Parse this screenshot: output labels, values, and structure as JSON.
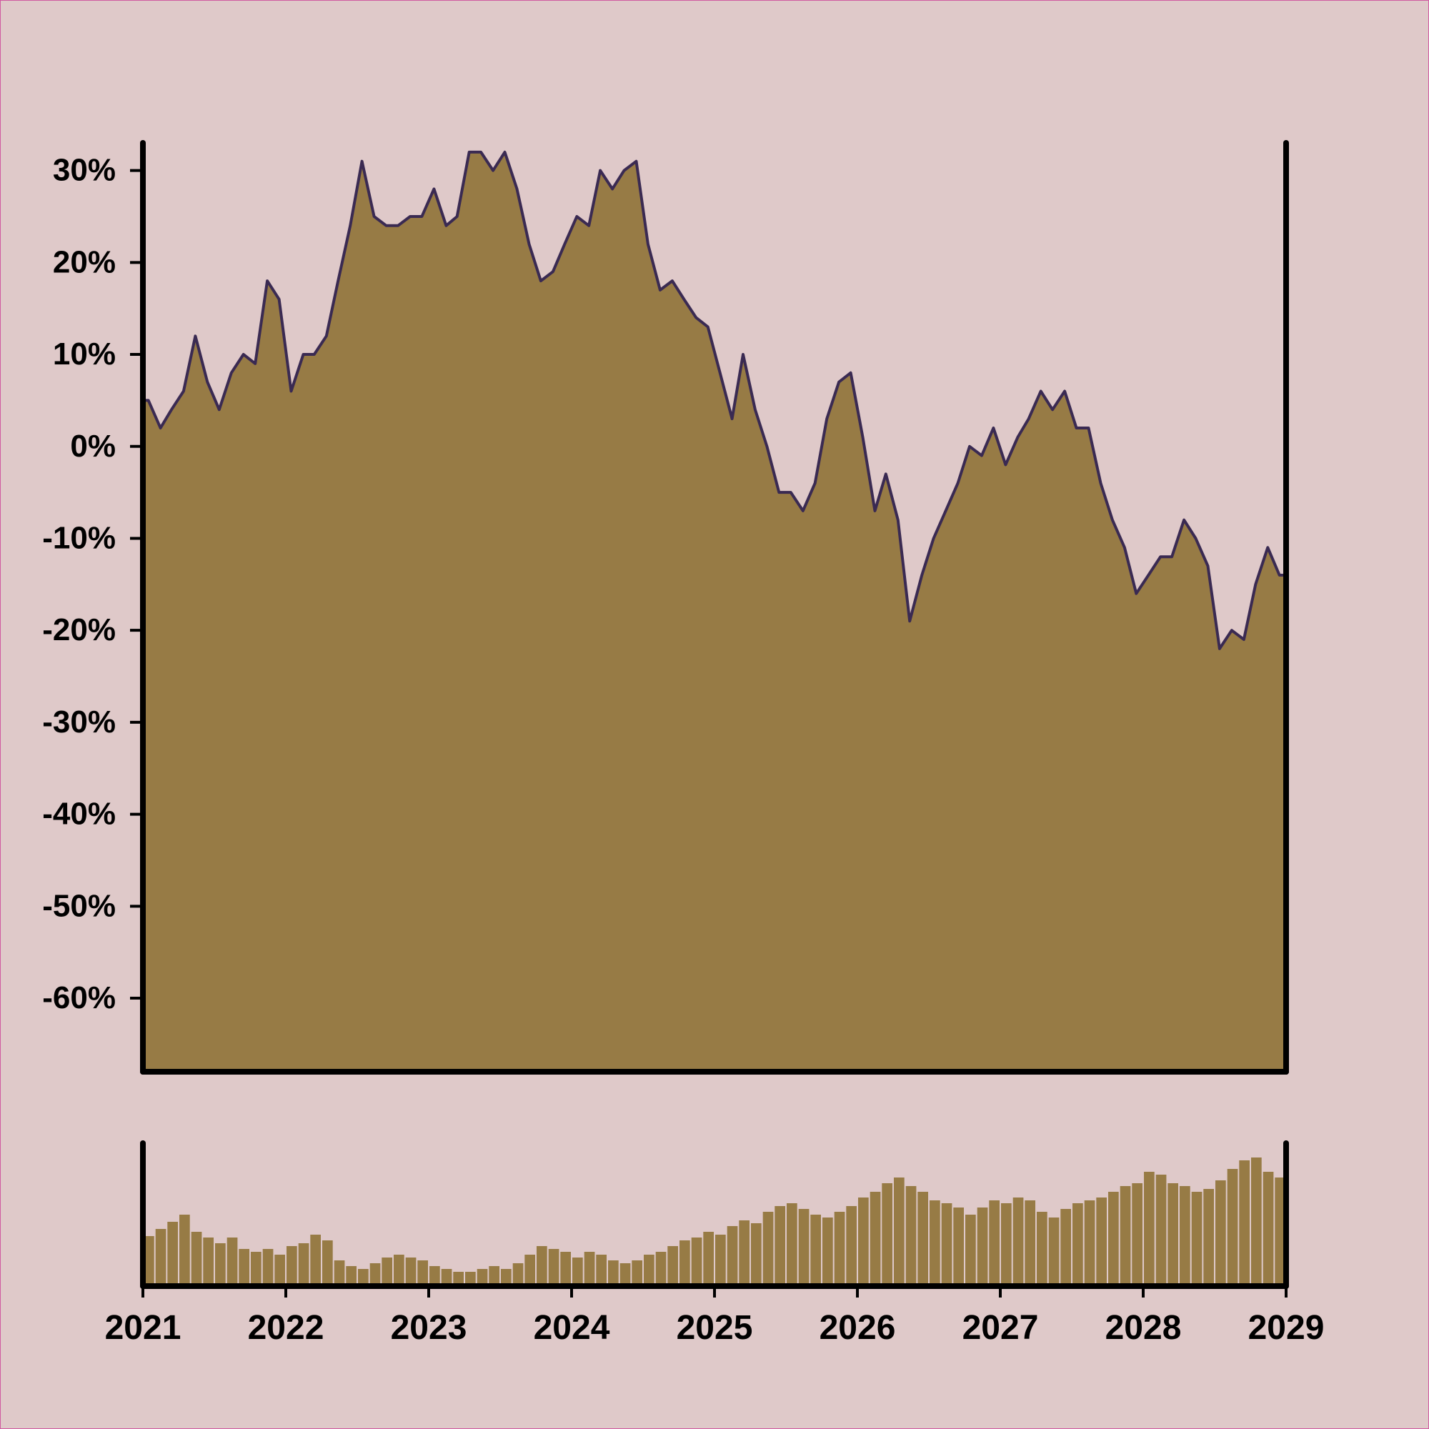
{
  "chart_data": [
    {
      "type": "area",
      "title": "",
      "xlabel": "",
      "ylabel": "",
      "y_unit": "%",
      "ylim": [
        -68,
        33
      ],
      "y_ticks": [
        30,
        20,
        10,
        0,
        -10,
        -20,
        -30,
        -40,
        -50,
        -60
      ],
      "y_tick_labels": [
        "30%",
        "20%",
        "10%",
        "0%",
        "-10%",
        "-20%",
        "-30%",
        "-40%",
        "-50%",
        "-60%"
      ],
      "x_range": [
        "2021-01-01",
        "2029-01-01"
      ],
      "grid": false,
      "legend": "none",
      "series": [
        {
          "x": [
            "2021-01",
            "2021-02",
            "2021-03",
            "2021-04",
            "2021-05",
            "2021-06",
            "2021-07",
            "2021-08",
            "2021-09",
            "2021-10",
            "2021-11",
            "2021-12",
            "2022-01",
            "2022-02",
            "2022-03",
            "2022-04",
            "2022-05",
            "2022-06",
            "2022-07",
            "2022-08",
            "2022-09",
            "2022-10",
            "2022-11",
            "2022-12",
            "2023-01",
            "2023-02",
            "2023-03",
            "2023-04",
            "2023-05",
            "2023-06",
            "2023-07",
            "2023-08",
            "2023-09",
            "2023-10",
            "2023-11",
            "2023-12",
            "2024-01",
            "2024-02",
            "2024-03",
            "2024-04",
            "2024-05",
            "2024-06",
            "2024-07",
            "2024-08",
            "2024-09",
            "2024-10",
            "2024-11",
            "2024-12",
            "2025-01",
            "2025-02",
            "2025-03",
            "2025-04",
            "2025-05",
            "2025-06",
            "2025-07",
            "2025-08",
            "2025-09",
            "2025-10",
            "2025-11",
            "2025-12",
            "2026-01",
            "2026-02",
            "2026-03",
            "2026-04",
            "2026-05",
            "2026-06",
            "2026-07",
            "2026-08",
            "2026-09",
            "2026-10",
            "2026-11",
            "2026-12",
            "2027-01",
            "2027-02",
            "2027-03",
            "2027-04",
            "2027-05",
            "2027-06",
            "2027-07",
            "2027-08",
            "2027-09",
            "2027-10",
            "2027-11",
            "2027-12",
            "2028-01",
            "2028-02",
            "2028-03",
            "2028-04",
            "2028-05",
            "2028-06",
            "2028-07",
            "2028-08",
            "2028-09",
            "2028-10",
            "2028-11",
            "2028-12"
          ],
          "values": [
            5,
            2,
            4,
            6,
            12,
            7,
            4,
            8,
            10,
            9,
            18,
            16,
            6,
            10,
            10,
            12,
            18,
            24,
            31,
            25,
            24,
            24,
            25,
            25,
            28,
            24,
            25,
            32,
            32,
            30,
            32,
            28,
            22,
            18,
            19,
            22,
            25,
            24,
            30,
            28,
            30,
            31,
            22,
            17,
            18,
            16,
            14,
            13,
            8,
            3,
            10,
            4,
            0,
            -5,
            -5,
            -7,
            -4,
            3,
            7,
            8,
            1,
            -7,
            -3,
            -8,
            -19,
            -14,
            -10,
            -7,
            -4,
            0,
            -1,
            2,
            -2,
            1,
            3,
            6,
            4,
            6,
            2,
            2,
            -4,
            -8,
            -11,
            -16,
            -14,
            -12,
            -12,
            -8,
            -10,
            -13,
            -22,
            -20,
            -21,
            -15,
            -11,
            -14
          ],
          "color": "#977b45",
          "line_color": "#3a2a52"
        }
      ]
    },
    {
      "type": "bar",
      "title": "",
      "x_tick_labels": [
        "2021",
        "2022",
        "2023",
        "2024",
        "2025",
        "2026",
        "2027",
        "2028",
        "2029"
      ],
      "x_ticks": [
        2021,
        2022,
        2023,
        2024,
        2025,
        2026,
        2027,
        2028,
        2029
      ],
      "y_ticks": [],
      "ylim": [
        0,
        1
      ],
      "values": [
        0.35,
        0.4,
        0.45,
        0.5,
        0.38,
        0.34,
        0.3,
        0.34,
        0.26,
        0.24,
        0.26,
        0.22,
        0.28,
        0.3,
        0.36,
        0.32,
        0.18,
        0.14,
        0.12,
        0.16,
        0.2,
        0.22,
        0.2,
        0.18,
        0.14,
        0.12,
        0.1,
        0.1,
        0.12,
        0.14,
        0.12,
        0.16,
        0.22,
        0.28,
        0.26,
        0.24,
        0.2,
        0.24,
        0.22,
        0.18,
        0.16,
        0.18,
        0.22,
        0.24,
        0.28,
        0.32,
        0.34,
        0.38,
        0.36,
        0.42,
        0.46,
        0.44,
        0.52,
        0.56,
        0.58,
        0.54,
        0.5,
        0.48,
        0.52,
        0.56,
        0.62,
        0.66,
        0.72,
        0.76,
        0.7,
        0.66,
        0.6,
        0.58,
        0.55,
        0.5,
        0.55,
        0.6,
        0.58,
        0.62,
        0.6,
        0.52,
        0.48,
        0.54,
        0.58,
        0.6,
        0.62,
        0.66,
        0.7,
        0.72,
        0.8,
        0.78,
        0.72,
        0.7,
        0.66,
        0.68,
        0.74,
        0.82,
        0.88,
        0.9,
        0.8,
        0.76
      ],
      "color": "#977b45"
    }
  ]
}
